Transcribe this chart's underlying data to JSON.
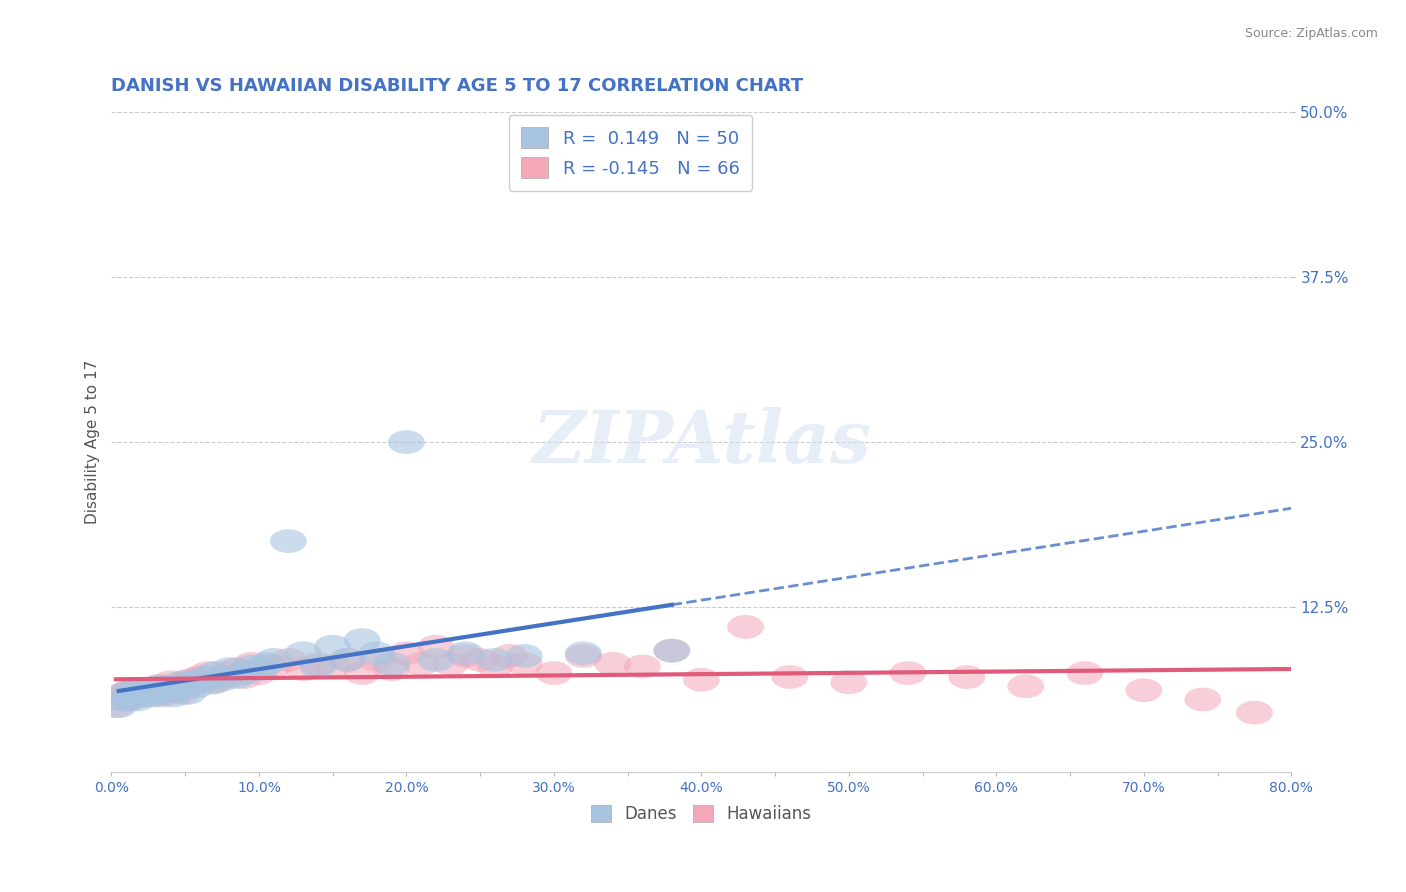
{
  "title": "DANISH VS HAWAIIAN DISABILITY AGE 5 TO 17 CORRELATION CHART",
  "source_text": "Source: ZipAtlas.com",
  "watermark": "ZIPAtlas",
  "ylabel": "Disability Age 5 to 17",
  "legend_label_bottom": [
    "Danes",
    "Hawaiians"
  ],
  "r_danish": 0.149,
  "n_danish": 50,
  "r_hawaiian": -0.145,
  "n_hawaiian": 66,
  "xlim": [
    0.0,
    0.8
  ],
  "ylim": [
    0.0,
    0.5
  ],
  "yticks": [
    0.125,
    0.25,
    0.375,
    0.5
  ],
  "ytick_labels": [
    "12.5%",
    "25.0%",
    "37.5%",
    "50.0%"
  ],
  "xtick_labels": [
    "0.0%",
    "",
    "10.0%",
    "",
    "20.0%",
    "",
    "30.0%",
    "",
    "40.0%",
    "",
    "50.0%",
    "",
    "60.0%",
    "",
    "70.0%",
    "",
    "80.0%"
  ],
  "xticks": [
    0.0,
    0.05,
    0.1,
    0.15,
    0.2,
    0.25,
    0.3,
    0.35,
    0.4,
    0.45,
    0.5,
    0.55,
    0.6,
    0.65,
    0.7,
    0.75,
    0.8
  ],
  "color_danish": "#a8c4e0",
  "color_hawaiian": "#f4a7b9",
  "color_danish_line": "#4472c4",
  "color_hawaiian_line": "#e05a7a",
  "color_title": "#4472c4",
  "color_source": "#888888",
  "color_legend_text": "#4472c4",
  "color_ytick_labels": "#4472c4",
  "color_xtick_labels": "#4472c4",
  "background_color": "#ffffff",
  "grid_color": "#cccccc",
  "danes_x": [
    0.005,
    0.008,
    0.01,
    0.012,
    0.015,
    0.015,
    0.018,
    0.02,
    0.022,
    0.025,
    0.028,
    0.03,
    0.032,
    0.035,
    0.038,
    0.04,
    0.042,
    0.045,
    0.048,
    0.05,
    0.052,
    0.055,
    0.058,
    0.06,
    0.065,
    0.068,
    0.07,
    0.075,
    0.08,
    0.085,
    0.09,
    0.095,
    0.1,
    0.105,
    0.11,
    0.12,
    0.13,
    0.14,
    0.15,
    0.16,
    0.17,
    0.18,
    0.19,
    0.2,
    0.22,
    0.24,
    0.26,
    0.28,
    0.32,
    0.38
  ],
  "danes_y": [
    0.05,
    0.055,
    0.06,
    0.055,
    0.058,
    0.062,
    0.055,
    0.06,
    0.058,
    0.062,
    0.06,
    0.058,
    0.065,
    0.06,
    0.062,
    0.065,
    0.058,
    0.062,
    0.068,
    0.065,
    0.06,
    0.068,
    0.065,
    0.07,
    0.072,
    0.068,
    0.075,
    0.07,
    0.078,
    0.072,
    0.075,
    0.08,
    0.078,
    0.082,
    0.085,
    0.175,
    0.09,
    0.08,
    0.095,
    0.085,
    0.1,
    0.09,
    0.082,
    0.25,
    0.085,
    0.09,
    0.085,
    0.088,
    0.09,
    0.092
  ],
  "hawaiians_x": [
    0.003,
    0.005,
    0.008,
    0.01,
    0.012,
    0.015,
    0.018,
    0.02,
    0.022,
    0.025,
    0.028,
    0.03,
    0.032,
    0.035,
    0.038,
    0.04,
    0.042,
    0.045,
    0.048,
    0.05,
    0.052,
    0.055,
    0.058,
    0.06,
    0.065,
    0.07,
    0.075,
    0.08,
    0.085,
    0.09,
    0.095,
    0.1,
    0.11,
    0.12,
    0.13,
    0.14,
    0.15,
    0.16,
    0.17,
    0.18,
    0.19,
    0.2,
    0.21,
    0.22,
    0.23,
    0.24,
    0.25,
    0.26,
    0.27,
    0.28,
    0.3,
    0.32,
    0.34,
    0.36,
    0.38,
    0.4,
    0.43,
    0.46,
    0.5,
    0.54,
    0.58,
    0.62,
    0.66,
    0.7,
    0.74,
    0.775
  ],
  "hawaiians_y": [
    0.05,
    0.055,
    0.058,
    0.06,
    0.055,
    0.062,
    0.058,
    0.06,
    0.062,
    0.058,
    0.062,
    0.06,
    0.065,
    0.058,
    0.062,
    0.068,
    0.062,
    0.065,
    0.06,
    0.068,
    0.065,
    0.07,
    0.068,
    0.072,
    0.075,
    0.068,
    0.072,
    0.075,
    0.078,
    0.072,
    0.082,
    0.075,
    0.08,
    0.085,
    0.078,
    0.082,
    0.08,
    0.085,
    0.075,
    0.085,
    0.078,
    0.09,
    0.082,
    0.095,
    0.082,
    0.088,
    0.085,
    0.08,
    0.088,
    0.082,
    0.075,
    0.088,
    0.082,
    0.08,
    0.092,
    0.07,
    0.11,
    0.072,
    0.068,
    0.075,
    0.072,
    0.065,
    0.075,
    0.062,
    0.055,
    0.045
  ],
  "figsize": [
    14.06,
    8.92
  ],
  "dpi": 100
}
